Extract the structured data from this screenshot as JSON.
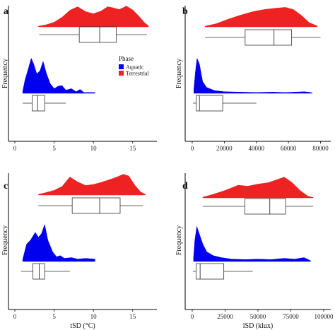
{
  "legend": {
    "title": "Phase",
    "items": [
      {
        "label": "Aquatic",
        "color": "#0000ee"
      },
      {
        "label": "Terrestrial",
        "color": "#ee2222"
      }
    ]
  },
  "chart_data": [
    {
      "type": "area",
      "label": "a",
      "xlabel": "",
      "ylabel": "Frequency",
      "xlim": [
        0,
        17
      ],
      "xticks": [
        0,
        5,
        10,
        15
      ],
      "tick_labels": [
        "0",
        "5",
        "10",
        "15"
      ],
      "terrestrial": {
        "density": [
          [
            3,
            0.03
          ],
          [
            4,
            0.1
          ],
          [
            5,
            0.22
          ],
          [
            6,
            0.45
          ],
          [
            7,
            0.78
          ],
          [
            8,
            0.95
          ],
          [
            9,
            0.72
          ],
          [
            10,
            0.62
          ],
          [
            11,
            0.75
          ],
          [
            11.8,
            0.95
          ],
          [
            12.5,
            0.9
          ],
          [
            13.3,
            0.82
          ],
          [
            14.2,
            0.98
          ],
          [
            15,
            0.8
          ],
          [
            15.8,
            0.5
          ],
          [
            16.5,
            0.2
          ],
          [
            17,
            0.05
          ]
        ],
        "box": {
          "min": 3.1,
          "q1": 8.2,
          "median": 10.8,
          "q3": 12.9,
          "max": 16.8
        }
      },
      "aquatic": {
        "density": [
          [
            1,
            0.05
          ],
          [
            1.3,
            0.35
          ],
          [
            1.7,
            0.62
          ],
          [
            2.1,
            0.9
          ],
          [
            2.4,
            0.75
          ],
          [
            2.8,
            0.5
          ],
          [
            3.2,
            0.58
          ],
          [
            3.6,
            0.82
          ],
          [
            4.0,
            0.52
          ],
          [
            4.5,
            0.25
          ],
          [
            5.0,
            0.12
          ],
          [
            5.5,
            0.18
          ],
          [
            6.0,
            0.2
          ],
          [
            6.5,
            0.08
          ],
          [
            7.2,
            0.12
          ],
          [
            7.8,
            0.04
          ],
          [
            8.3,
            0.1
          ],
          [
            8.8,
            0.02
          ],
          [
            10.2,
            0.02
          ]
        ],
        "box": {
          "min": 1.0,
          "q1": 2.2,
          "median": 2.9,
          "q3": 3.8,
          "max": 6.5
        }
      }
    },
    {
      "type": "area",
      "label": "b",
      "xlabel": "",
      "ylabel": "Frequency",
      "xlim": [
        0,
        82000
      ],
      "xticks": [
        0,
        20000,
        40000,
        60000,
        80000
      ],
      "tick_labels": [
        "0",
        "20000",
        "40000",
        "60000",
        "80000"
      ],
      "terrestrial": {
        "density": [
          [
            8000,
            0.03
          ],
          [
            15000,
            0.15
          ],
          [
            22000,
            0.35
          ],
          [
            30000,
            0.55
          ],
          [
            38000,
            0.72
          ],
          [
            45000,
            0.82
          ],
          [
            52000,
            0.88
          ],
          [
            58000,
            0.92
          ],
          [
            63000,
            0.82
          ],
          [
            68000,
            0.55
          ],
          [
            73000,
            0.2
          ],
          [
            78000,
            0.04
          ]
        ],
        "box": {
          "min": 8000,
          "q1": 33000,
          "median": 51000,
          "q3": 62000,
          "max": 80000
        }
      },
      "aquatic": {
        "density": [
          [
            1000,
            0.1
          ],
          [
            2000,
            0.55
          ],
          [
            3000,
            0.9
          ],
          [
            4500,
            0.75
          ],
          [
            6500,
            0.3
          ],
          [
            9000,
            0.15
          ],
          [
            14000,
            0.07
          ],
          [
            20000,
            0.04
          ],
          [
            30000,
            0.03
          ],
          [
            40000,
            0.02
          ],
          [
            50000,
            0.03
          ],
          [
            58000,
            0.02
          ],
          [
            64000,
            0.03
          ],
          [
            70000,
            0.04
          ],
          [
            74000,
            0.02
          ],
          [
            75000,
            0.0
          ]
        ],
        "box": {
          "min": 500,
          "q1": 2500,
          "median": 4500,
          "q3": 19000,
          "max": 40000
        }
      }
    },
    {
      "type": "area",
      "label": "c",
      "xlabel": "tSD (°C)",
      "ylabel": "Frequency",
      "xlim": [
        0,
        17
      ],
      "xticks": [
        0,
        5,
        10,
        15
      ],
      "tick_labels": [
        "0",
        "5",
        "10",
        "15"
      ],
      "terrestrial": {
        "density": [
          [
            3,
            0.03
          ],
          [
            4,
            0.12
          ],
          [
            5,
            0.22
          ],
          [
            6,
            0.4
          ],
          [
            7,
            0.85
          ],
          [
            8,
            0.62
          ],
          [
            9,
            0.45
          ],
          [
            10,
            0.5
          ],
          [
            11,
            0.6
          ],
          [
            12,
            0.72
          ],
          [
            13,
            0.85
          ],
          [
            13.8,
            0.98
          ],
          [
            14.5,
            0.9
          ],
          [
            15.3,
            0.45
          ],
          [
            16,
            0.15
          ],
          [
            16.6,
            0.03
          ]
        ],
        "box": {
          "min": 3.0,
          "q1": 7.3,
          "median": 10.8,
          "q3": 13.4,
          "max": 16.3
        }
      },
      "aquatic": {
        "density": [
          [
            1,
            0.05
          ],
          [
            1.5,
            0.45
          ],
          [
            2,
            0.55
          ],
          [
            2.6,
            0.75
          ],
          [
            3.0,
            0.62
          ],
          [
            3.4,
            0.72
          ],
          [
            3.8,
            0.95
          ],
          [
            4.2,
            0.55
          ],
          [
            4.8,
            0.25
          ],
          [
            5.3,
            0.12
          ],
          [
            5.8,
            0.15
          ],
          [
            6.3,
            0.08
          ],
          [
            7.2,
            0.1
          ],
          [
            8.0,
            0.06
          ],
          [
            9.0,
            0.08
          ],
          [
            10.2,
            0.06
          ]
        ],
        "box": {
          "min": 0.8,
          "q1": 2.3,
          "median": 3.1,
          "q3": 3.8,
          "max": 7.0
        }
      }
    },
    {
      "type": "area",
      "label": "d",
      "xlabel": "lSD (klux)",
      "ylabel": "Frequency",
      "xlim": [
        0,
        100000
      ],
      "xticks": [
        0,
        25000,
        50000,
        75000,
        100000
      ],
      "tick_labels": [
        "0",
        "25000",
        "50000",
        "75000",
        "100000"
      ],
      "terrestrial": {
        "density": [
          [
            8000,
            0.03
          ],
          [
            15000,
            0.15
          ],
          [
            25000,
            0.35
          ],
          [
            35000,
            0.6
          ],
          [
            42000,
            0.55
          ],
          [
            50000,
            0.65
          ],
          [
            58000,
            0.72
          ],
          [
            64000,
            0.85
          ],
          [
            70000,
            0.98
          ],
          [
            76000,
            0.72
          ],
          [
            82000,
            0.35
          ],
          [
            88000,
            0.08
          ],
          [
            92000,
            0.02
          ]
        ],
        "box": {
          "min": 8000,
          "q1": 40000,
          "median": 59000,
          "q3": 71000,
          "max": 92000
        }
      },
      "aquatic": {
        "density": [
          [
            1000,
            0.1
          ],
          [
            2000,
            0.55
          ],
          [
            3500,
            0.9
          ],
          [
            5500,
            0.7
          ],
          [
            8000,
            0.45
          ],
          [
            11000,
            0.25
          ],
          [
            16000,
            0.15
          ],
          [
            22000,
            0.1
          ],
          [
            30000,
            0.06
          ],
          [
            40000,
            0.05
          ],
          [
            50000,
            0.06
          ],
          [
            60000,
            0.05
          ],
          [
            70000,
            0.08
          ],
          [
            78000,
            0.06
          ],
          [
            85000,
            0.1
          ],
          [
            90000,
            0.02
          ]
        ],
        "box": {
          "min": 500,
          "q1": 3000,
          "median": 6000,
          "q3": 24000,
          "max": 46000
        }
      }
    }
  ]
}
